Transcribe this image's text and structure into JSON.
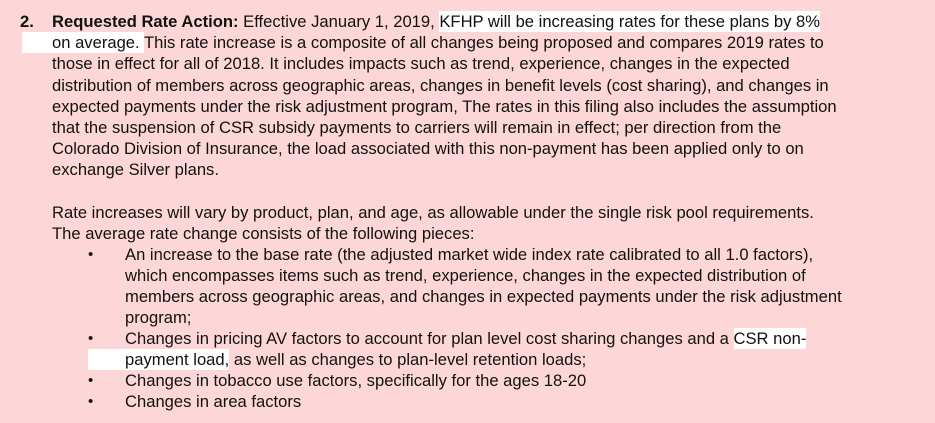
{
  "item_number": "2.",
  "heading": "Requested Rate Action:",
  "paragraph1": [
    [
      {
        "t": " Effective January 1, 2019, ",
        "h": false
      },
      {
        "t": "KFHP will be increasing rates for these plans by 8%",
        "h": true
      }
    ],
    [
      {
        "t": "on average. ",
        "h": true
      },
      {
        "t": " This rate increase is a composite of all changes being proposed and compares 2019 rates to",
        "h": false
      }
    ],
    [
      {
        "t": "those in effect for all of 2018.  It includes impacts such as trend, experience, changes in the expected",
        "h": false
      }
    ],
    [
      {
        "t": "distribution of members across geographic areas, changes in benefit levels (cost sharing), and changes in",
        "h": false
      }
    ],
    [
      {
        "t": "expected payments under the risk adjustment program,  The rates in this filing also includes the assumption",
        "h": false
      }
    ],
    [
      {
        "t": "that the suspension of CSR subsidy payments to carriers will remain in effect; per direction from the",
        "h": false
      }
    ],
    [
      {
        "t": "Colorado Division of Insurance, the load associated with this non-payment has been applied only to on",
        "h": false
      }
    ],
    [
      {
        "t": "exchange Silver plans.",
        "h": false
      }
    ]
  ],
  "paragraph2": [
    [
      {
        "t": "Rate increases will vary by product, plan, and age, as allowable under the single risk pool requirements.",
        "h": false
      }
    ],
    [
      {
        "t": "The average rate change consists of the following pieces:",
        "h": false
      }
    ]
  ],
  "bullets": [
    {
      "lines": [
        [
          {
            "t": "An increase to the base rate (the adjusted market wide index rate calibrated to all 1.0 factors),",
            "h": false
          }
        ],
        [
          {
            "t": "which encompasses items such as trend, experience, changes in the expected distribution of",
            "h": false
          }
        ],
        [
          {
            "t": "members across geographic areas, and changes in expected payments under the risk adjustment",
            "h": false
          }
        ],
        [
          {
            "t": "program;",
            "h": false
          }
        ]
      ]
    },
    {
      "lines": [
        [
          {
            "t": "Changes in pricing AV factors to account for plan level cost sharing changes and a ",
            "h": false
          },
          {
            "t": "CSR non-",
            "h": true
          }
        ],
        [
          {
            "t": "payment load,",
            "h": true
          },
          {
            "t": " as well as changes to plan-level retention loads;",
            "h": false
          }
        ]
      ]
    },
    {
      "lines": [
        [
          {
            "t": "Changes in tobacco use factors, specifically for the ages 18-20",
            "h": false
          }
        ]
      ]
    },
    {
      "lines": [
        [
          {
            "t": "Changes in area factors",
            "h": false
          }
        ]
      ]
    }
  ],
  "colors": {
    "background": "#fdd7d7",
    "highlight": "#ffffff",
    "text": "#111111"
  },
  "bullet_icon": "bullet-dot-icon"
}
